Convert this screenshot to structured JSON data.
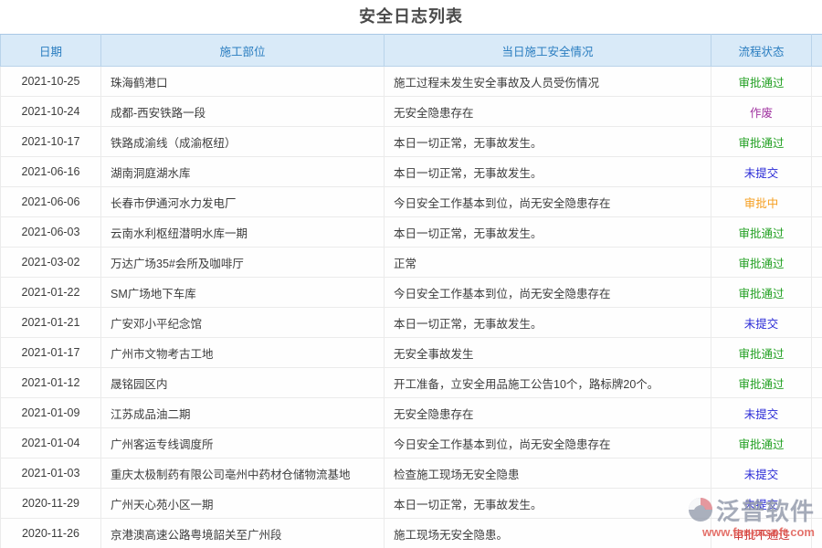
{
  "page": {
    "title": "安全日志列表"
  },
  "table": {
    "columns": [
      {
        "label": "日期"
      },
      {
        "label": "施工部位"
      },
      {
        "label": "当日施工安全情况"
      },
      {
        "label": "流程状态"
      },
      {
        "label": ""
      }
    ],
    "status_colors": {
      "审批通过": "#22a022",
      "作废": "#a033a0",
      "未提交": "#2a2ad6",
      "审批中": "#f59e1e",
      "审批不通过": "#cc3333"
    },
    "rows": [
      {
        "date": "2021-10-25",
        "location": "珠海鹤港口",
        "situation": "施工过程未发生安全事故及人员受伤情况",
        "status": "审批通过"
      },
      {
        "date": "2021-10-24",
        "location": "成都-西安铁路一段",
        "situation": "无安全隐患存在",
        "status": "作废"
      },
      {
        "date": "2021-10-17",
        "location": "铁路成渝线（成渝枢纽）",
        "situation": "本日一切正常，无事故发生。",
        "status": "审批通过"
      },
      {
        "date": "2021-06-16",
        "location": "湖南洞庭湖水库",
        "situation": "本日一切正常，无事故发生。",
        "status": "未提交"
      },
      {
        "date": "2021-06-06",
        "location": "长春市伊通河水力发电厂",
        "situation": "今日安全工作基本到位，尚无安全隐患存在",
        "status": "审批中"
      },
      {
        "date": "2021-06-03",
        "location": "云南水利枢纽潜明水库一期",
        "situation": "本日一切正常，无事故发生。",
        "status": "审批通过"
      },
      {
        "date": "2021-03-02",
        "location": "万达广场35#会所及咖啡厅",
        "situation": "正常",
        "status": "审批通过"
      },
      {
        "date": "2021-01-22",
        "location": "SM广场地下车库",
        "situation": "今日安全工作基本到位，尚无安全隐患存在",
        "status": "审批通过"
      },
      {
        "date": "2021-01-21",
        "location": "广安邓小平纪念馆",
        "situation": "本日一切正常，无事故发生。",
        "status": "未提交"
      },
      {
        "date": "2021-01-17",
        "location": "广州市文物考古工地",
        "situation": "无安全事故发生",
        "status": "审批通过"
      },
      {
        "date": "2021-01-12",
        "location": "晟铭园区内",
        "situation": "开工准备，立安全用品施工公告10个，路标牌20个。",
        "status": "审批通过"
      },
      {
        "date": "2021-01-09",
        "location": "江苏成品油二期",
        "situation": "无安全隐患存在",
        "status": "未提交"
      },
      {
        "date": "2021-01-04",
        "location": "广州客运专线调度所",
        "situation": "今日安全工作基本到位，尚无安全隐患存在",
        "status": "审批通过"
      },
      {
        "date": "2021-01-03",
        "location": "重庆太极制药有限公司亳州中药材仓储物流基地",
        "situation": "检查施工现场无安全隐患",
        "status": "未提交"
      },
      {
        "date": "2020-11-29",
        "location": "广州天心苑小区一期",
        "situation": "本日一切正常，无事故发生。",
        "status": "未提交"
      },
      {
        "date": "2020-11-26",
        "location": "京港澳高速公路粤境韶关至广州段",
        "situation": "施工现场无安全隐患。",
        "status": "审批不通过"
      }
    ]
  },
  "watermark": {
    "brand": "泛普软件",
    "url": "www.fanpusoft.com"
  }
}
